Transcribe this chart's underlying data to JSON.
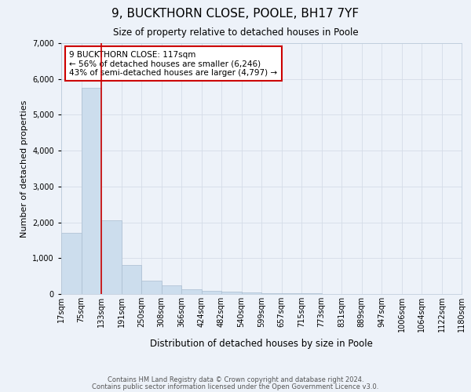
{
  "title": "9, BUCKTHORN CLOSE, POOLE, BH17 7YF",
  "subtitle": "Size of property relative to detached houses in Poole",
  "xlabel": "Distribution of detached houses by size in Poole",
  "ylabel": "Number of detached properties",
  "bins": [
    "17sqm",
    "75sqm",
    "133sqm",
    "191sqm",
    "250sqm",
    "308sqm",
    "366sqm",
    "424sqm",
    "482sqm",
    "540sqm",
    "599sqm",
    "657sqm",
    "715sqm",
    "773sqm",
    "831sqm",
    "889sqm",
    "947sqm",
    "1006sqm",
    "1064sqm",
    "1122sqm",
    "1180sqm"
  ],
  "values": [
    1700,
    5750,
    2050,
    800,
    370,
    230,
    130,
    90,
    70,
    50,
    30,
    20,
    30,
    0,
    0,
    0,
    0,
    0,
    0,
    0
  ],
  "bar_color": "#ccdded",
  "bar_edge_color": "#aabdd0",
  "grid_color": "#d4dce8",
  "property_line_color": "#cc0000",
  "annotation_text": "9 BUCKTHORN CLOSE: 117sqm\n← 56% of detached houses are smaller (6,246)\n43% of semi-detached houses are larger (4,797) →",
  "annotation_box_color": "#ffffff",
  "annotation_box_edge_color": "#cc0000",
  "ylim": [
    0,
    7000
  ],
  "yticks": [
    0,
    1000,
    2000,
    3000,
    4000,
    5000,
    6000,
    7000
  ],
  "footer1": "Contains HM Land Registry data © Crown copyright and database right 2024.",
  "footer2": "Contains public sector information licensed under the Open Government Licence v3.0.",
  "background_color": "#edf2f9"
}
